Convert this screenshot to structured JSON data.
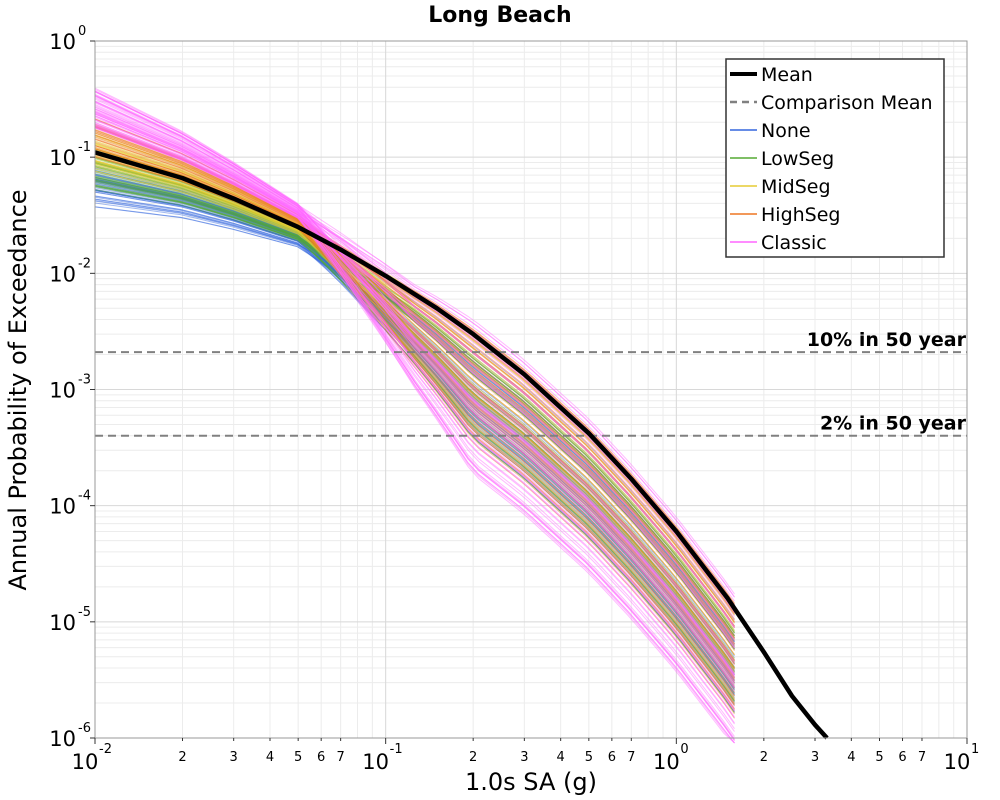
{
  "chart_data": {
    "type": "line",
    "title": "Long Beach",
    "xlabel": "1.0s SA (g)",
    "ylabel": "Annual Probability of Exceedance",
    "xscale": "log",
    "yscale": "log",
    "xlim": [
      0.01,
      10
    ],
    "ylim": [
      1e-06,
      1
    ],
    "grid": true,
    "legend_position": "top-right",
    "x_major_ticks": [
      {
        "base": "10",
        "exp": "-2",
        "value": 0.01
      },
      {
        "base": "10",
        "exp": "-1",
        "value": 0.1
      },
      {
        "base": "10",
        "exp": "0",
        "value": 1
      },
      {
        "base": "10",
        "exp": "1",
        "value": 10
      }
    ],
    "x_minor_tick_labels": [
      "2",
      "3",
      "4",
      "5",
      "6",
      "7"
    ],
    "y_major_ticks": [
      {
        "base": "10",
        "exp": "0",
        "value": 1
      },
      {
        "base": "10",
        "exp": "-1",
        "value": 0.1
      },
      {
        "base": "10",
        "exp": "-2",
        "value": 0.01
      },
      {
        "base": "10",
        "exp": "-3",
        "value": 0.001
      },
      {
        "base": "10",
        "exp": "-4",
        "value": 0.0001
      },
      {
        "base": "10",
        "exp": "-5",
        "value": 1e-05
      },
      {
        "base": "10",
        "exp": "-6",
        "value": 1e-06
      }
    ],
    "reference_lines": [
      {
        "label": "10% in 50 year",
        "y": 0.0021
      },
      {
        "label": "2% in 50 year",
        "y": 0.0004
      }
    ],
    "series": [
      {
        "name": "Mean",
        "color": "#000000",
        "style": "solid-thick",
        "x": [
          0.01,
          0.02,
          0.03,
          0.05,
          0.07,
          0.1,
          0.15,
          0.2,
          0.3,
          0.5,
          0.7,
          1.0,
          1.5,
          2.0,
          2.5,
          3.0,
          3.3
        ],
        "y": [
          0.11,
          0.066,
          0.044,
          0.025,
          0.016,
          0.0095,
          0.005,
          0.003,
          0.00135,
          0.00042,
          0.00017,
          6e-05,
          1.6e-05,
          5.5e-06,
          2.3e-06,
          1.3e-06,
          1e-06
        ]
      },
      {
        "name": "Comparison Mean",
        "color": "#808080",
        "style": "dashed"
      },
      {
        "name": "None",
        "color": "#3366dd",
        "style": "thin"
      },
      {
        "name": "LowSeg",
        "color": "#55aa33",
        "style": "thin"
      },
      {
        "name": "MidSeg",
        "color": "#e6cc33",
        "style": "thin"
      },
      {
        "name": "HighSeg",
        "color": "#ee7722",
        "style": "thin"
      },
      {
        "name": "Classic",
        "color": "#ff66ff",
        "style": "thin"
      }
    ]
  }
}
